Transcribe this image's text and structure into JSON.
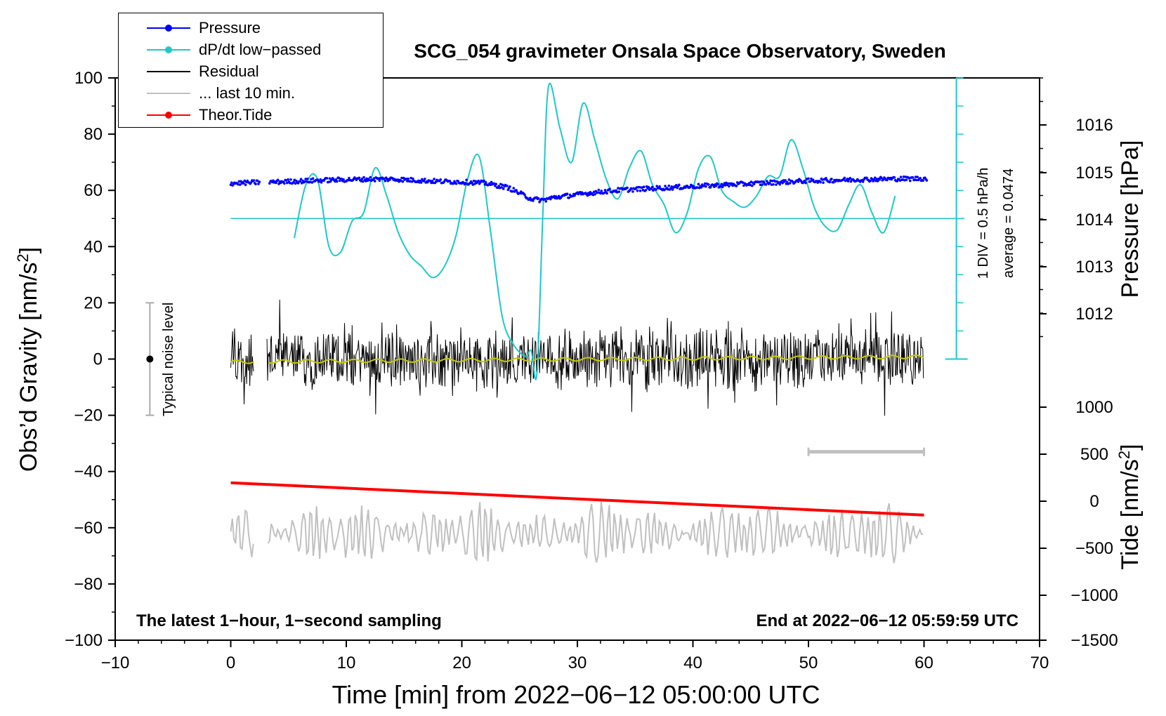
{
  "chart_data": {
    "type": "line",
    "title": "SCG_054 gravimeter Onsala Space Observatory, Sweden",
    "xlabel": "Time [min] from 2022−06−12 05:00:00 UTC",
    "xlim": [
      -10,
      70
    ],
    "xticks": [
      "−10",
      "0",
      "10",
      "20",
      "30",
      "40",
      "50",
      "60",
      "70"
    ],
    "left_axis": {
      "label": "Obs’d Gravity [nm/s",
      "label_sup": "2",
      "label_end": "]",
      "ylim": [
        -100,
        100
      ],
      "ticks": [
        "100",
        "80",
        "60",
        "40",
        "20",
        "0",
        "−20",
        "−40",
        "−60",
        "−80",
        "−100"
      ]
    },
    "pressure_axis": {
      "label": "Pressure [hPa]",
      "ticks": [
        "1016",
        "1015",
        "1014",
        "1013",
        "1012"
      ]
    },
    "tide_axis": {
      "label": "Tide [nm/s",
      "label_sup": "2",
      "label_end": "]",
      "ticks": [
        "1000",
        "500",
        "0",
        "−500",
        "−1000",
        "−1500"
      ]
    },
    "dpdt_scale": {
      "div_label": "1 DIV = 0.5 hPa/h",
      "average_label": "average = 0.0474"
    },
    "noise_label": "Typical noise level",
    "annotation_left": "The latest 1−hour, 1−second sampling",
    "annotation_right": "End at 2022−06−12 05:59:59 UTC",
    "legend": [
      {
        "name": "Pressure",
        "color": "#0000ff",
        "marker": true
      },
      {
        "name": "dP/dt low−passed",
        "color": "#1fc8c8",
        "marker": true
      },
      {
        "name": "Residual",
        "color": "#000000",
        "marker": false
      },
      {
        "name": "... last 10 min.",
        "color": "#c0c0c0",
        "marker": false
      },
      {
        "name": "Theor.Tide",
        "color": "#ff0000",
        "marker": true
      }
    ],
    "series": [
      {
        "name": "Pressure",
        "axis": "left_plot_units",
        "x": [
          0,
          2,
          4,
          6,
          8,
          10,
          12,
          14,
          16,
          18,
          20,
          22,
          24,
          26,
          27,
          28,
          30,
          32,
          34,
          36,
          38,
          40,
          42,
          44,
          46,
          48,
          50,
          52,
          54,
          56,
          58,
          60
        ],
        "y": [
          62.5,
          62.8,
          63.0,
          63.3,
          63.6,
          63.8,
          64.0,
          64.0,
          63.6,
          63.2,
          63.0,
          62.6,
          61.0,
          57.0,
          56.5,
          57.5,
          58.5,
          59.5,
          60.2,
          60.6,
          61.0,
          61.4,
          61.8,
          62.2,
          62.6,
          63.0,
          63.4,
          63.6,
          63.8,
          64.0,
          64.1,
          64.2
        ]
      },
      {
        "name": "dP/dt low−passed",
        "axis": "left_plot_units",
        "x": [
          5.5,
          6.5,
          7.5,
          8.5,
          9.5,
          10.5,
          11.5,
          12.5,
          13.5,
          14.5,
          15.5,
          16.5,
          17.5,
          18.5,
          19.5,
          20.5,
          21.5,
          22.5,
          23.5,
          24.5,
          25.5,
          26.0,
          26.5,
          27.0,
          27.5,
          28.5,
          29.5,
          30.5,
          31.5,
          32.5,
          33.5,
          34.5,
          35.5,
          36.5,
          37.5,
          38.5,
          39.5,
          40.5,
          41.5,
          42.5,
          43.5,
          44.5,
          45.5,
          46.5,
          47.5,
          48.5,
          49.5,
          50.5,
          51.5,
          52.5,
          53.5,
          54.5,
          55.5,
          56.5,
          57.5
        ],
        "y": [
          43,
          62,
          64,
          40,
          38,
          49,
          52,
          68,
          58,
          45,
          37,
          33,
          29,
          33,
          44,
          64,
          72,
          45,
          15,
          5,
          1,
          3,
          -5,
          50,
          97,
          82,
          70,
          91,
          78,
          64,
          57,
          68,
          74,
          62,
          55,
          45,
          52,
          68,
          72,
          60,
          56,
          54,
          58,
          65,
          65,
          78,
          68,
          54,
          47,
          46,
          55,
          62,
          52,
          45,
          58
        ]
      },
      {
        "name": "Residual",
        "axis": "left_plot_units",
        "x_range": [
          0,
          60
        ],
        "amplitude": 12
      },
      {
        "name": "... last 10 min.",
        "axis": "left_plot_units",
        "x_range": [
          0,
          60
        ],
        "center": -62,
        "amplitude": 10
      },
      {
        "name": "Theor.Tide",
        "axis": "left_plot_units",
        "x": [
          0,
          60
        ],
        "y": [
          -44,
          -55.5
        ]
      }
    ],
    "noise_bar": {
      "x": -7,
      "y": 0,
      "range": [
        -20,
        20
      ]
    },
    "last10_bar": {
      "x": [
        50,
        60
      ],
      "y": -33
    },
    "reference_line_y": 50
  }
}
